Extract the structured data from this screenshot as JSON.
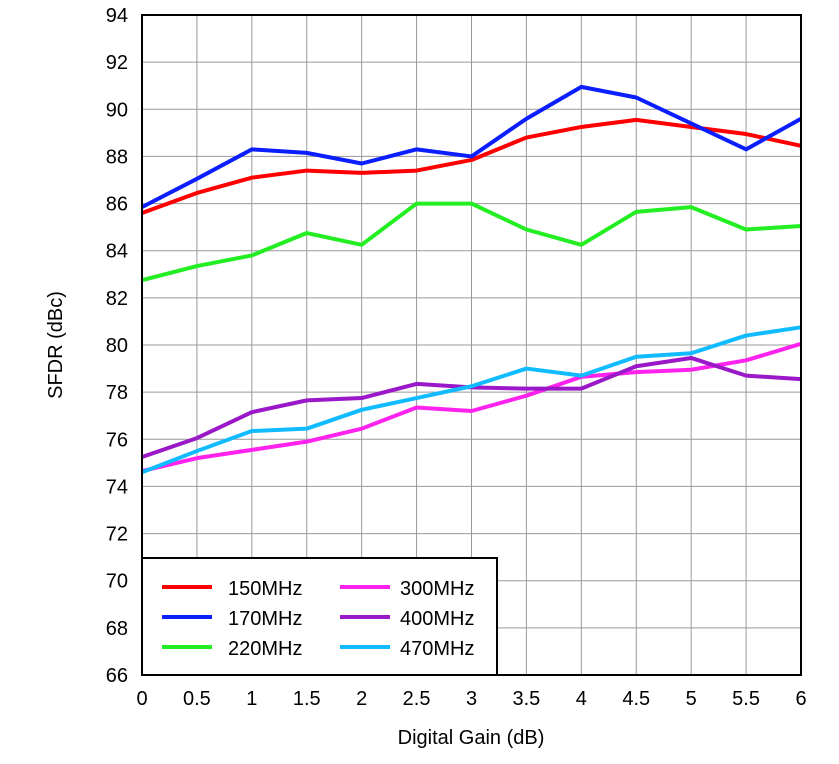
{
  "chart_data": {
    "type": "line",
    "title": "",
    "xlabel": "Digital Gain (dB)",
    "ylabel": "SFDR (dBc)",
    "xlim": [
      0,
      6
    ],
    "ylim": [
      66,
      94
    ],
    "grid": true,
    "legend_placement": "bottom-left",
    "x": [
      0,
      0.5,
      1,
      1.5,
      2,
      2.5,
      3,
      3.5,
      4,
      4.5,
      5,
      5.5,
      6
    ],
    "x_ticks": [
      "0",
      "0.5",
      "1",
      "1.5",
      "2",
      "2.5",
      "3",
      "3.5",
      "4",
      "4.5",
      "5",
      "5.5",
      "6"
    ],
    "y_ticks": [
      "66",
      "68",
      "70",
      "72",
      "74",
      "76",
      "78",
      "80",
      "82",
      "84",
      "86",
      "88",
      "90",
      "92",
      "94"
    ],
    "series": [
      {
        "name": "150MHz",
        "color": "#ff0000",
        "values": [
          85.6,
          86.45,
          87.1,
          87.4,
          87.3,
          87.4,
          87.85,
          88.8,
          89.25,
          89.55,
          89.25,
          88.95,
          88.45
        ]
      },
      {
        "name": "170MHz",
        "color": "#0a1eff",
        "values": [
          85.85,
          87.05,
          88.3,
          88.15,
          87.7,
          88.3,
          88.0,
          89.6,
          90.95,
          90.5,
          89.4,
          88.3,
          89.6
        ]
      },
      {
        "name": "220MHz",
        "color": "#22ee22",
        "values": [
          82.75,
          83.35,
          83.8,
          84.75,
          84.25,
          86.0,
          86.0,
          84.9,
          84.25,
          85.65,
          85.85,
          84.9,
          85.05
        ]
      },
      {
        "name": "300MHz",
        "color": "#ff22ee",
        "values": [
          74.65,
          75.2,
          75.55,
          75.9,
          76.45,
          77.35,
          77.2,
          77.85,
          78.65,
          78.85,
          78.95,
          79.35,
          80.05
        ]
      },
      {
        "name": "400MHz",
        "color": "#9a18c8",
        "values": [
          75.25,
          76.05,
          77.15,
          77.65,
          77.75,
          78.35,
          78.2,
          78.15,
          78.15,
          79.1,
          79.45,
          78.7,
          78.55
        ]
      },
      {
        "name": "470MHz",
        "color": "#11bbff",
        "values": [
          74.6,
          75.5,
          76.35,
          76.45,
          77.25,
          77.75,
          78.25,
          79.0,
          78.7,
          79.5,
          79.65,
          80.4,
          80.75
        ]
      }
    ]
  }
}
